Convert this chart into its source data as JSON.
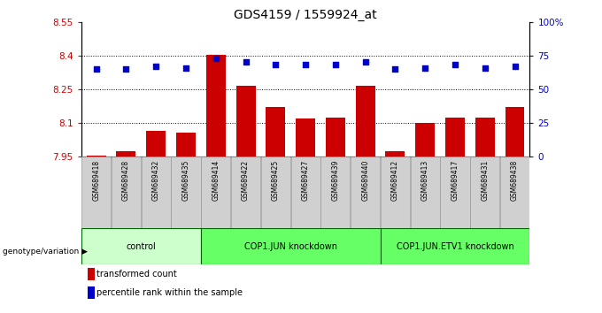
{
  "title": "GDS4159 / 1559924_at",
  "samples": [
    "GSM689418",
    "GSM689428",
    "GSM689432",
    "GSM689435",
    "GSM689414",
    "GSM689422",
    "GSM689425",
    "GSM689427",
    "GSM689439",
    "GSM689440",
    "GSM689412",
    "GSM689413",
    "GSM689417",
    "GSM689431",
    "GSM689438"
  ],
  "bar_values": [
    7.955,
    7.975,
    8.065,
    8.055,
    8.405,
    8.265,
    8.17,
    8.12,
    8.125,
    8.265,
    7.975,
    8.1,
    8.125,
    8.125,
    8.17
  ],
  "percentile_values": [
    65,
    65,
    67,
    66,
    73,
    70,
    68,
    68,
    68,
    70,
    65,
    66,
    68,
    66,
    67
  ],
  "ylim_left": [
    7.95,
    8.55
  ],
  "ylim_right": [
    0,
    100
  ],
  "yticks_left": [
    7.95,
    8.1,
    8.25,
    8.4,
    8.55
  ],
  "yticks_right": [
    0,
    25,
    50,
    75,
    100
  ],
  "ytick_labels_left": [
    "7.95",
    "8.1",
    "8.25",
    "8.4",
    "8.55"
  ],
  "ytick_labels_right": [
    "0",
    "25",
    "50",
    "75",
    "100%"
  ],
  "bar_color": "#cc0000",
  "dot_color": "#0000cc",
  "bar_baseline": 7.95,
  "groups": [
    {
      "label": "control",
      "start": 0,
      "end": 4
    },
    {
      "label": "COP1.JUN knockdown",
      "start": 4,
      "end": 10
    },
    {
      "label": "COP1.JUN.ETV1 knockdown",
      "start": 10,
      "end": 15
    }
  ],
  "group_light_color": "#ccffcc",
  "group_bright_color": "#66ff66",
  "group_border_color": "#006600",
  "xlabel_area": "genotype/variation",
  "legend_red_label": "transformed count",
  "legend_blue_label": "percentile rank within the sample",
  "bg_color": "#ffffff",
  "title_fontsize": 10,
  "tick_fontsize": 7.5,
  "sample_fontsize": 5.5,
  "group_fontsize": 7,
  "legend_fontsize": 7
}
